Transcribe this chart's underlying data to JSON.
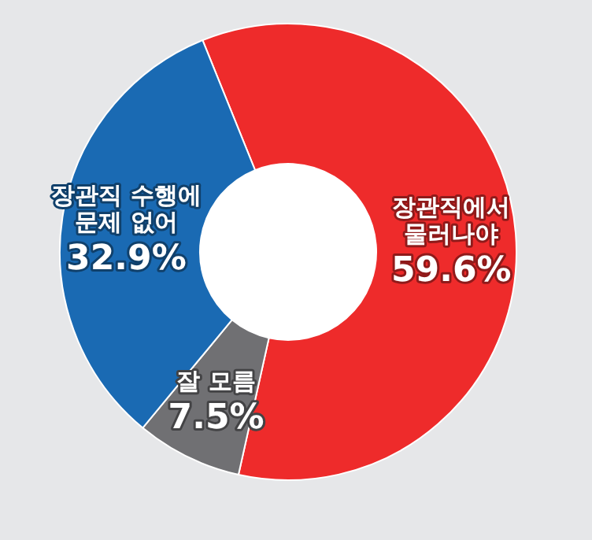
{
  "chart_data": {
    "type": "donut",
    "categories": [
      "장관직에서\n물러나야",
      "잘 모름",
      "장관직 수행에\n문제 없어"
    ],
    "values": [
      59.6,
      7.5,
      32.9
    ],
    "colors": [
      "#ee2b2b",
      "#707073",
      "#1a6ab3"
    ],
    "value_labels": [
      "59.6%",
      "7.5%",
      "32.9%"
    ]
  }
}
